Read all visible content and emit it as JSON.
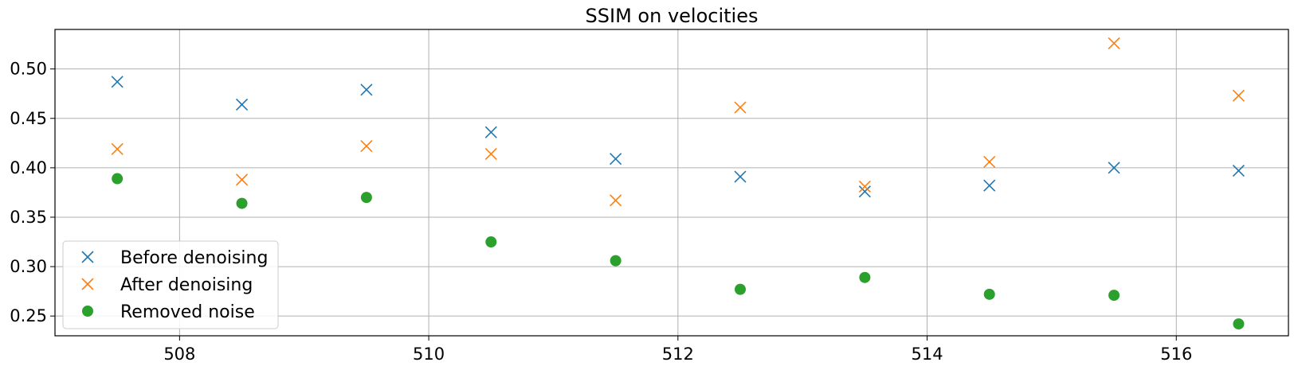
{
  "chart_data": {
    "type": "scatter",
    "title": "SSIM on velocities",
    "xlabel": "",
    "ylabel": "",
    "xlim": [
      507,
      516.9
    ],
    "ylim": [
      0.23,
      0.54
    ],
    "xticks": [
      508,
      510,
      512,
      514,
      516
    ],
    "yticks": [
      0.25,
      0.3,
      0.35,
      0.4,
      0.45,
      0.5
    ],
    "grid": true,
    "legend_position": "lower-left",
    "series": [
      {
        "name": "Before denoising",
        "marker": "x",
        "color": "#1f77b4",
        "x": [
          507.5,
          508.5,
          509.5,
          510.5,
          511.5,
          512.5,
          513.5,
          514.5,
          515.5,
          516.5
        ],
        "y": [
          0.487,
          0.464,
          0.479,
          0.436,
          0.409,
          0.391,
          0.376,
          0.382,
          0.4,
          0.397
        ]
      },
      {
        "name": "After denoising",
        "marker": "x",
        "color": "#ff7f0e",
        "x": [
          507.5,
          508.5,
          509.5,
          510.5,
          511.5,
          512.5,
          513.5,
          514.5,
          515.5,
          516.5
        ],
        "y": [
          0.419,
          0.388,
          0.422,
          0.414,
          0.367,
          0.461,
          0.381,
          0.406,
          0.526,
          0.473
        ]
      },
      {
        "name": "Removed noise",
        "marker": "o",
        "color": "#2ca02c",
        "x": [
          507.5,
          508.5,
          509.5,
          510.5,
          511.5,
          512.5,
          513.5,
          514.5,
          515.5,
          516.5
        ],
        "y": [
          0.389,
          0.364,
          0.37,
          0.325,
          0.306,
          0.277,
          0.289,
          0.272,
          0.271,
          0.242
        ]
      }
    ]
  }
}
